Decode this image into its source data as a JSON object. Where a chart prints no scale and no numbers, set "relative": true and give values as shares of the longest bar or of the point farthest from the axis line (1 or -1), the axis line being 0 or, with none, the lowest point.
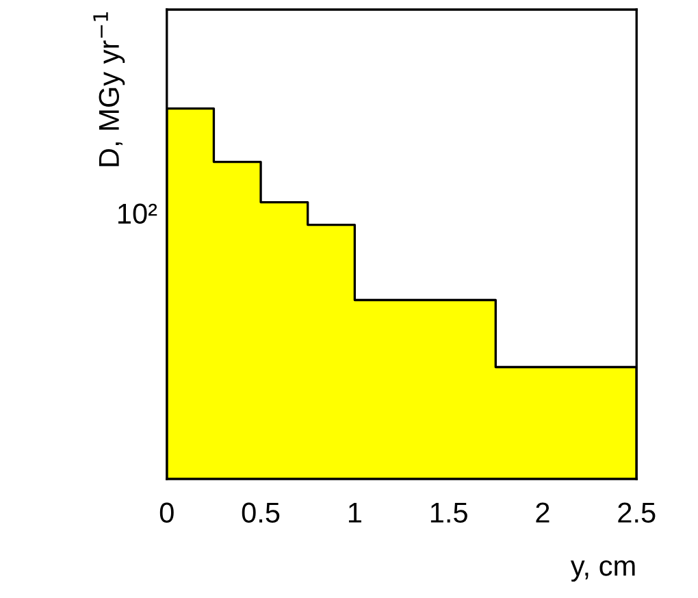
{
  "chart_data": {
    "type": "area",
    "relative": true,
    "x": [
      0,
      0.25,
      0.25,
      0.5,
      0.5,
      0.75,
      0.75,
      1,
      1,
      1.75,
      1.75,
      2.5
    ],
    "values": [
      1,
      1,
      0.856,
      0.856,
      0.747,
      0.747,
      0.686,
      0.686,
      0.483,
      0.483,
      0.302,
      0.302
    ],
    "color": "#ffff00",
    "xlim": [
      0,
      2.5
    ],
    "xticks": [
      0,
      0.5,
      1,
      1.5,
      2,
      2.5
    ],
    "xlabel": "y, cm",
    "ylabel": "D, MGy yr$^{−1}$",
    "annotations": [
      "10²"
    ],
    "grid": false,
    "legend": false
  }
}
